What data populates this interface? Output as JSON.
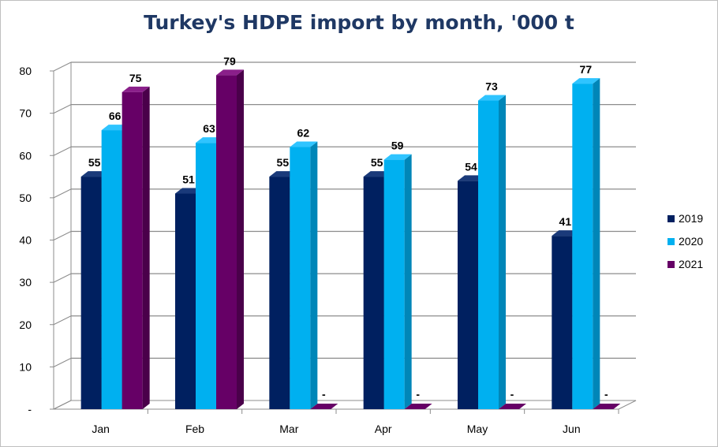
{
  "chart_data": {
    "type": "bar",
    "title": "Turkey's HDPE import by month, '000 t",
    "categories": [
      "Jan",
      "Feb",
      "Mar",
      "Apr",
      "May",
      "Jun"
    ],
    "series": [
      {
        "name": "2019",
        "values": [
          55,
          51,
          55,
          55,
          54,
          41
        ],
        "color": "#002060",
        "side_color": "#001540",
        "top_color": "#1a3a7a"
      },
      {
        "name": "2020",
        "values": [
          66,
          63,
          62,
          59,
          73,
          77
        ],
        "color": "#00b0f0",
        "side_color": "#0086b8",
        "top_color": "#2fc4ff"
      },
      {
        "name": "2021",
        "values": [
          75,
          79,
          null,
          null,
          null,
          null
        ],
        "color": "#660066",
        "side_color": "#4a004a",
        "top_color": "#8a1f8a"
      }
    ],
    "data_labels": [
      [
        "55",
        "51",
        "55",
        "55",
        "54",
        "41"
      ],
      [
        "66",
        "63",
        "62",
        "59",
        "73",
        "77"
      ],
      [
        "75",
        "79",
        "-",
        "-",
        "-",
        "-"
      ]
    ],
    "y_ticks": [
      "-",
      "10",
      "20",
      "30",
      "40",
      "50",
      "60",
      "70",
      "80"
    ],
    "ylim": [
      0,
      80
    ],
    "grid": true,
    "legend_position": "right"
  }
}
